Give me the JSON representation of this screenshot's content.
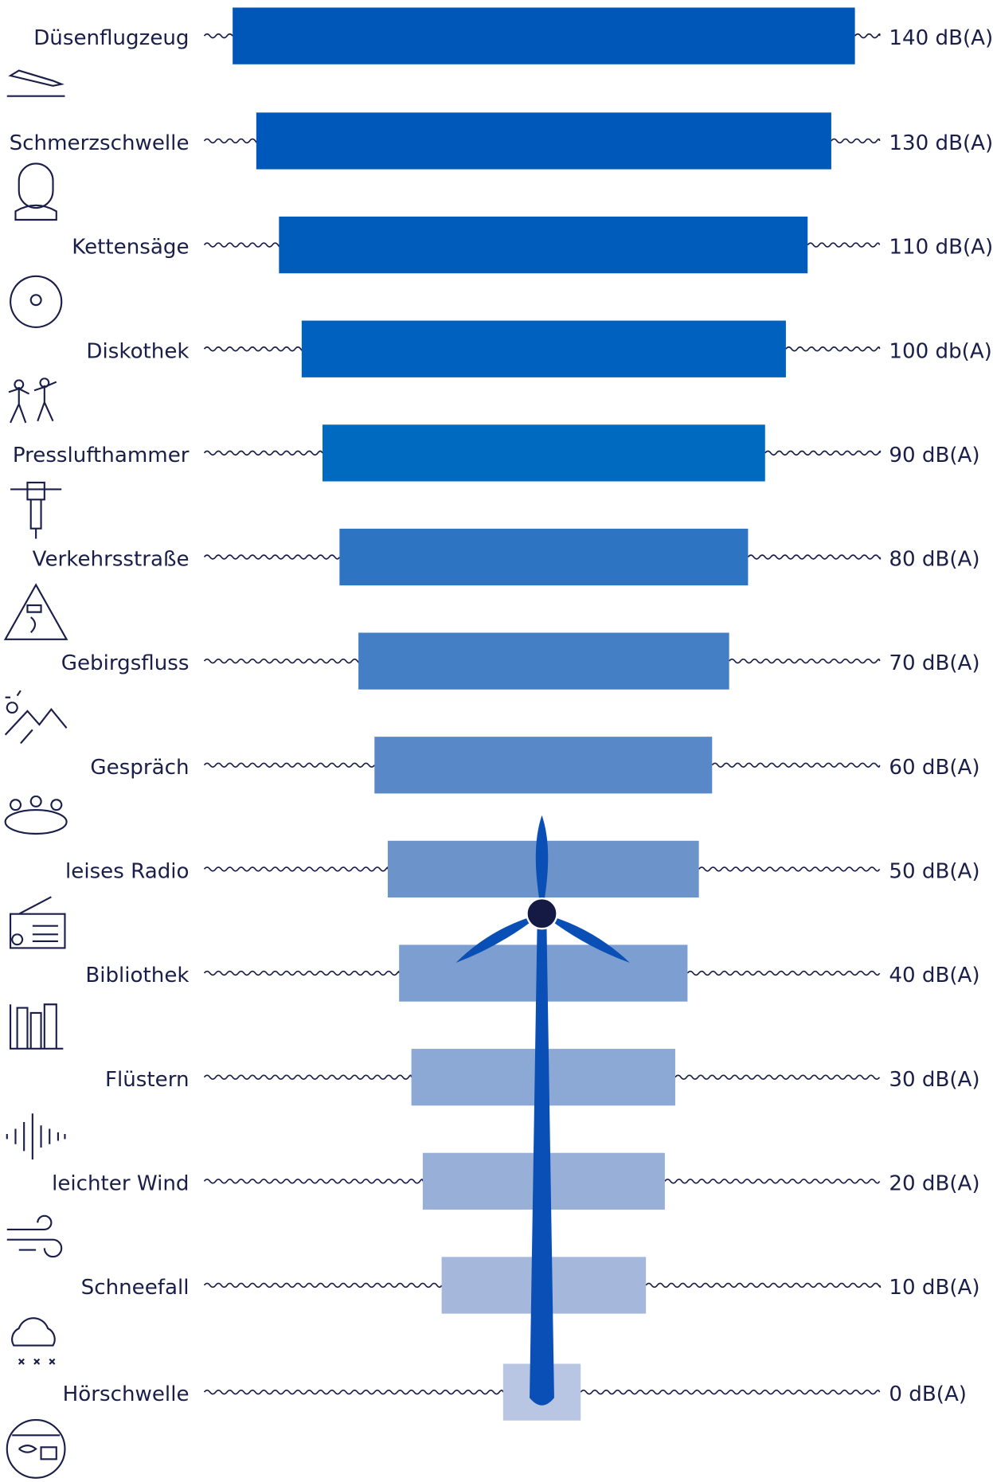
{
  "items": [
    {
      "label": "Düsenflugzeug",
      "level": "140 dB(A)"
    },
    {
      "label": "Schmerzschwelle",
      "level": "130 dB(A)"
    },
    {
      "label": "Kettensäge",
      "level": "110 dB(A)"
    },
    {
      "label": "Diskothek",
      "level": "100 db(A)"
    },
    {
      "label": "Presslufthammer",
      "level": "90 dB(A)"
    },
    {
      "label": "Verkehrsstraße",
      "level": "80 dB(A)"
    },
    {
      "label": "Gebirgsfluss",
      "level": "70 dB(A)"
    },
    {
      "label": "Gespräch",
      "level": "60 dB(A)"
    },
    {
      "label": "leises Radio",
      "level": "50 dB(A)"
    },
    {
      "label": "Bibliothek",
      "level": "40 dB(A)"
    },
    {
      "label": "Flüstern",
      "level": "30 dB(A)"
    },
    {
      "label": "leichter Wind",
      "level": "20 dB(A)"
    },
    {
      "label": "Schneefall",
      "level": "10 dB(A)"
    },
    {
      "label": "Hörschwelle",
      "level": "0 dB(A)"
    }
  ]
}
